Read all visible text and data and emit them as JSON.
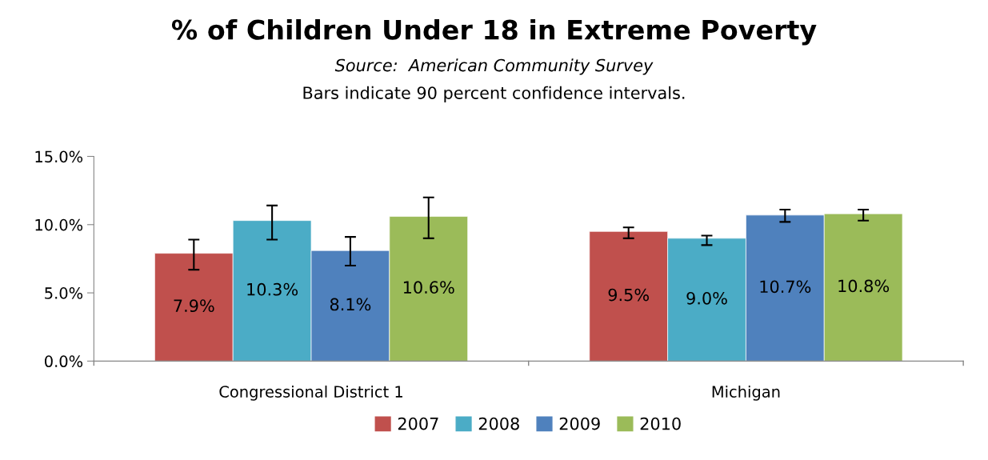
{
  "chart_data": {
    "type": "bar",
    "title": "% of Children Under 18 in Extreme Poverty",
    "subtitle": "Source:  American Community Survey",
    "annotations": [
      "Bars indicate 90 percent confidence intervals."
    ],
    "categories": [
      "Congressional District 1",
      "Michigan"
    ],
    "series": [
      {
        "name": "2007",
        "color": "#c0504d",
        "values": [
          7.9,
          9.5
        ],
        "value_labels": [
          "7.9%",
          "9.5%"
        ],
        "errors": [
          [
            6.7,
            8.9
          ],
          [
            9.0,
            9.8
          ]
        ]
      },
      {
        "name": "2008",
        "color": "#4bacc6",
        "values": [
          10.3,
          9.0
        ],
        "value_labels": [
          "10.3%",
          "9.0%"
        ],
        "errors": [
          [
            8.9,
            11.4
          ],
          [
            8.5,
            9.2
          ]
        ]
      },
      {
        "name": "2009",
        "color": "#4f81bd",
        "values": [
          8.1,
          10.7
        ],
        "value_labels": [
          "8.1%",
          "10.7%"
        ],
        "errors": [
          [
            7.0,
            9.1
          ],
          [
            10.2,
            11.1
          ]
        ]
      },
      {
        "name": "2010",
        "color": "#9bbb59",
        "values": [
          10.6,
          10.8
        ],
        "value_labels": [
          "10.6%",
          "10.8%"
        ],
        "errors": [
          [
            9.0,
            12.0
          ],
          [
            10.3,
            11.1
          ]
        ]
      }
    ],
    "ylim": [
      0,
      15
    ],
    "yticks": [
      {
        "value": 0,
        "label": "0.0%"
      },
      {
        "value": 5,
        "label": "5.0%"
      },
      {
        "value": 10,
        "label": "10.0%"
      },
      {
        "value": 15,
        "label": "15.0%"
      }
    ],
    "grid": false,
    "legend": "bottom"
  }
}
